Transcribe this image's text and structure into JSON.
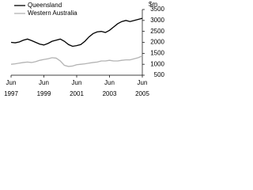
{
  "chart_data": {
    "type": "line",
    "y_label": "$m",
    "categories": [
      "Jun 1997",
      null,
      null,
      null,
      null,
      null,
      null,
      null,
      "Jun 1999",
      null,
      null,
      null,
      null,
      null,
      null,
      null,
      "Jun 2001",
      null,
      null,
      null,
      null,
      null,
      null,
      null,
      "Jun 2003",
      null,
      null,
      null,
      null,
      null,
      null,
      null,
      "Jun 2005"
    ],
    "series": [
      {
        "name": "Queensland",
        "color": "#000000",
        "values": [
          2000,
          1980,
          2020,
          2100,
          2150,
          2080,
          2000,
          1920,
          1880,
          1950,
          2050,
          2100,
          2150,
          2050,
          1900,
          1820,
          1850,
          1900,
          2050,
          2250,
          2400,
          2480,
          2500,
          2450,
          2550,
          2700,
          2850,
          2950,
          3000,
          2950,
          3000,
          3050,
          3100
        ]
      },
      {
        "name": "Western Australia",
        "color": "#b3b3b3",
        "values": [
          1000,
          1020,
          1050,
          1080,
          1100,
          1080,
          1120,
          1180,
          1220,
          1250,
          1300,
          1280,
          1150,
          950,
          900,
          920,
          980,
          1000,
          1020,
          1050,
          1080,
          1100,
          1150,
          1150,
          1180,
          1150,
          1150,
          1180,
          1200,
          1200,
          1250,
          1300,
          1380
        ]
      }
    ],
    "ylim": [
      500,
      3500
    ],
    "yticks": [
      500,
      1000,
      1500,
      2000,
      2500,
      3000,
      3500
    ],
    "y_axis_side": "right",
    "legend": "top-left"
  }
}
